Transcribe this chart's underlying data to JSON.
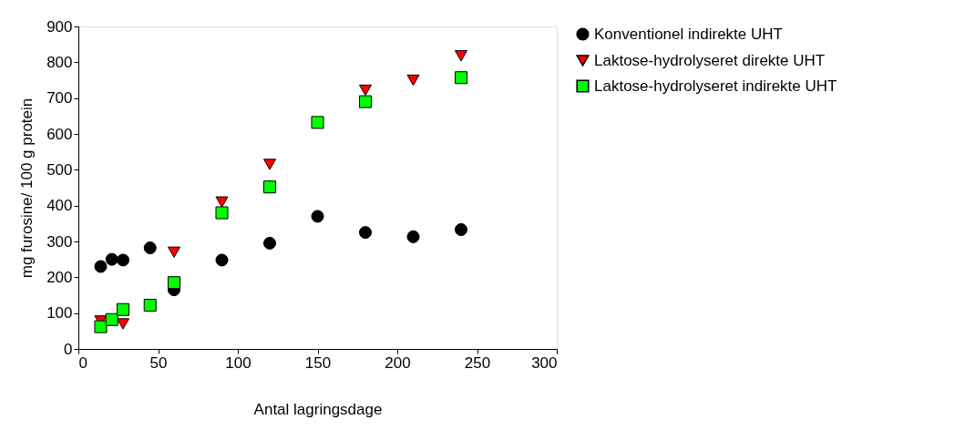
{
  "chart_data": {
    "type": "scatter",
    "xlabel": "Antal lagringsdage",
    "ylabel": "mg furosine/ 100 g protein",
    "xlim": [
      0,
      300
    ],
    "xticks": [
      0,
      50,
      100,
      150,
      200,
      250,
      300
    ],
    "ylim": [
      0,
      900
    ],
    "yticks": [
      0,
      100,
      200,
      300,
      400,
      500,
      600,
      700,
      800,
      900
    ],
    "grid": false,
    "legend": "right",
    "series": [
      {
        "name": "Konventionel indirekte UHT",
        "color": "#000000",
        "marker": "circle",
        "x": [
          14,
          21,
          28,
          45,
          60,
          90,
          120,
          150,
          180,
          210,
          240
        ],
        "values": [
          230,
          250,
          248,
          282,
          165,
          248,
          295,
          370,
          325,
          313,
          333
        ]
      },
      {
        "name": "Laktose-hydrolyseret direkte UHT",
        "color": "#ff0000",
        "marker": "triangle-down",
        "x": [
          14,
          28,
          60,
          90,
          120,
          180,
          210,
          240
        ],
        "values": [
          78,
          70,
          270,
          410,
          515,
          722,
          750,
          818
        ]
      },
      {
        "name": "Laktose-hydrolyseret indirekte UHT",
        "color": "#00ff00",
        "marker": "square",
        "x": [
          14,
          21,
          28,
          45,
          60,
          90,
          120,
          150,
          180,
          240
        ],
        "values": [
          62,
          82,
          110,
          122,
          185,
          380,
          452,
          632,
          690,
          757
        ]
      }
    ]
  }
}
